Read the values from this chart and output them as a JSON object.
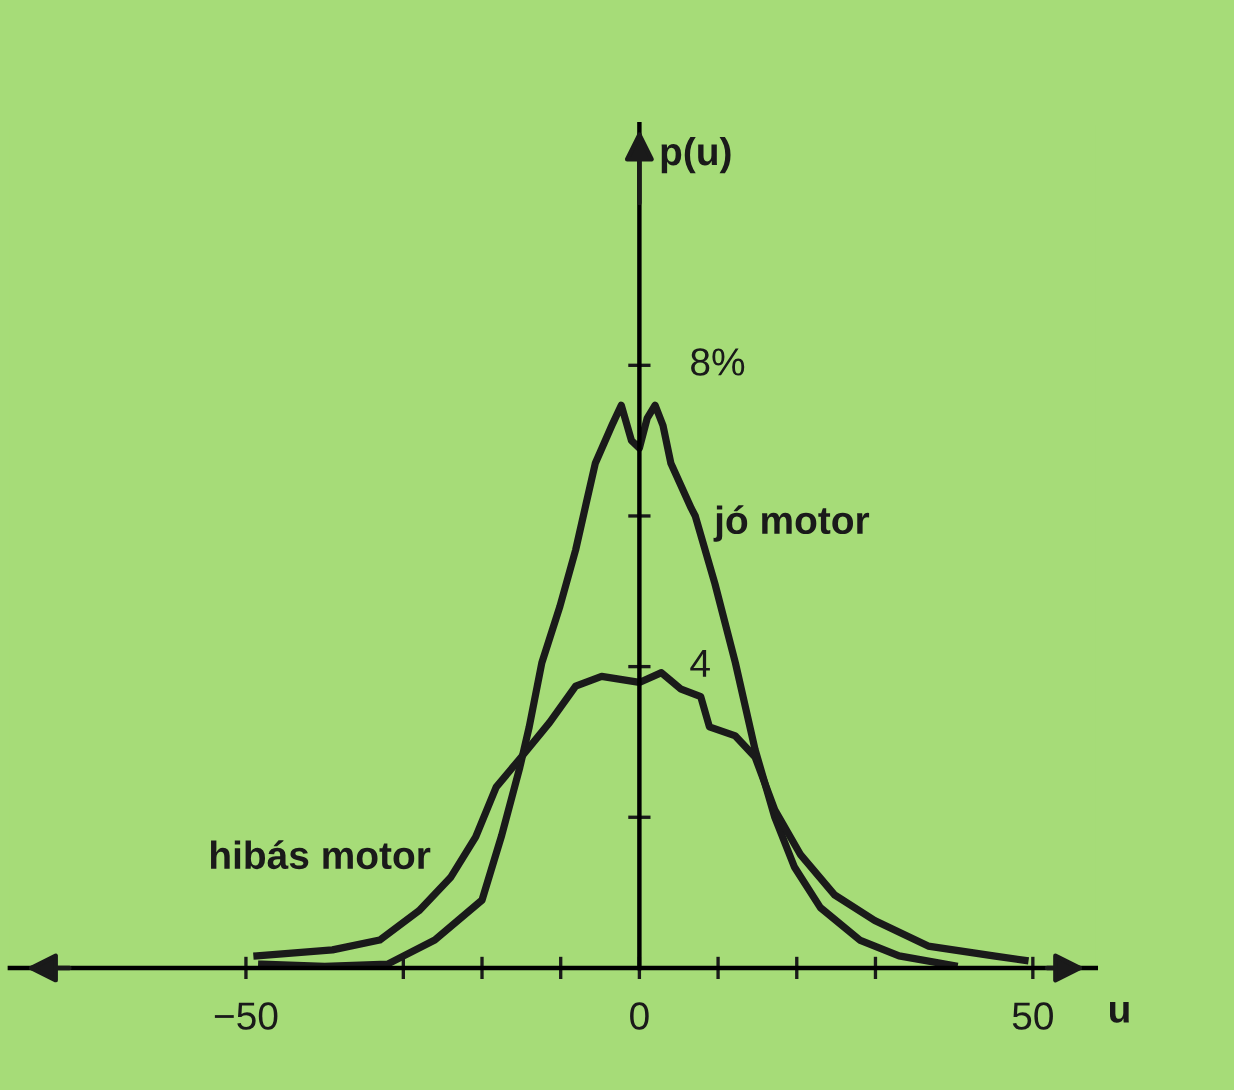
{
  "chart_data": {
    "type": "line",
    "xlabel": "u",
    "ylabel": "p(u)",
    "xlim": [
      -80,
      58
    ],
    "ylim": [
      0,
      11.2
    ],
    "xticks": [
      {
        "value": -50,
        "label": "−50"
      },
      {
        "value": -30,
        "label": null
      },
      {
        "value": -20,
        "label": null
      },
      {
        "value": -10,
        "label": null
      },
      0,
      {
        "value": 10,
        "label": null
      },
      {
        "value": 20,
        "label": null
      },
      {
        "value": 30,
        "label": null
      },
      50
    ],
    "yticks": [
      {
        "value": 2,
        "label": null
      },
      4,
      {
        "value": 6,
        "label": null
      },
      {
        "value": 8,
        "label": "8%"
      }
    ],
    "grid": false,
    "legend": false,
    "marker": "none",
    "line_style": "solid",
    "series": [
      {
        "name": "jó motor",
        "color": "#1a1a1a",
        "x": [
          -48,
          -40,
          -32,
          -26,
          -20,
          -17.5,
          -15.2,
          -14,
          -12.4,
          -10.1,
          -8.1,
          -6.8,
          -5.6,
          -3.5,
          -2.3,
          -1,
          0,
          1,
          2,
          3,
          4,
          6.6,
          7.1,
          9.6,
          12.2,
          14.7,
          17.2,
          19.7,
          23,
          28,
          33,
          40
        ],
        "values": [
          0.05,
          0.02,
          0.05,
          0.37,
          0.9,
          1.76,
          2.66,
          3.2,
          4.05,
          4.8,
          5.55,
          6.15,
          6.7,
          7.2,
          7.47,
          7.0,
          6.9,
          7.3,
          7.47,
          7.2,
          6.7,
          6.1,
          6.0,
          5.1,
          4.05,
          2.9,
          2.0,
          1.34,
          0.8,
          0.37,
          0.16,
          0.03
        ]
      },
      {
        "name": "hibás motor",
        "color": "#1a1a1a",
        "x": [
          -48.6,
          -39,
          -33,
          -28,
          -24,
          -20.8,
          -18.2,
          -15,
          -11.4,
          -8.1,
          -4.8,
          0,
          2.8,
          5.3,
          7.8,
          8.9,
          12.2,
          14.7,
          17.2,
          20.5,
          24.8,
          29.9,
          36.7,
          45,
          49
        ],
        "values": [
          0.16,
          0.24,
          0.37,
          0.76,
          1.2,
          1.74,
          2.4,
          2.8,
          3.26,
          3.74,
          3.87,
          3.79,
          3.92,
          3.7,
          3.6,
          3.2,
          3.08,
          2.8,
          2.1,
          1.5,
          0.97,
          0.63,
          0.29,
          0.16,
          0.1
        ]
      }
    ]
  }
}
